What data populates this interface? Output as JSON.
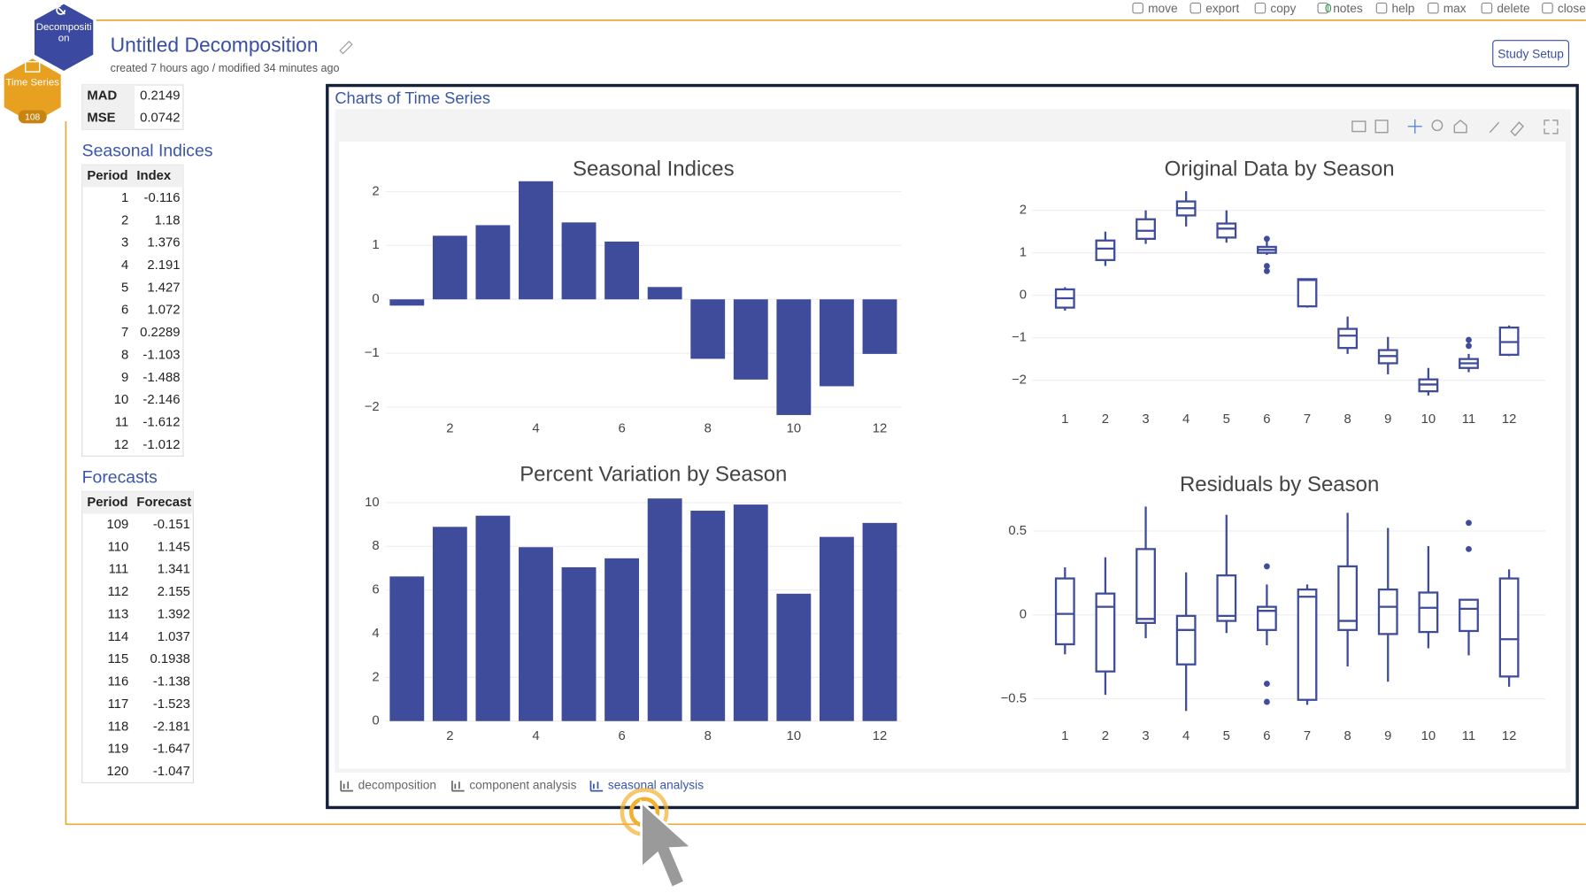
{
  "toolbar": [
    "move",
    "export",
    "copy",
    "notes",
    "help",
    "max",
    "delete",
    "close"
  ],
  "notes_count": 0,
  "module_label": [
    "Decompositi",
    "on"
  ],
  "study_label": "Time Series",
  "study_count": 108,
  "header": {
    "title": "Untitled Decomposition",
    "subtitle": "created 7 hours ago / modified 34 minutes ago",
    "button": "Study Setup"
  },
  "stats": {
    "rows": [
      [
        "MAD",
        0.2149
      ],
      [
        "MSE",
        0.0742
      ]
    ]
  },
  "seasonal_indices": {
    "title": "Seasonal Indices",
    "columns": [
      "Period",
      "Index"
    ],
    "rows": [
      [
        1,
        -0.116
      ],
      [
        2,
        1.18
      ],
      [
        3,
        1.376
      ],
      [
        4,
        2.191
      ],
      [
        5,
        1.427
      ],
      [
        6,
        1.072
      ],
      [
        7,
        0.2289
      ],
      [
        8,
        -1.103
      ],
      [
        9,
        -1.488
      ],
      [
        10,
        -2.146
      ],
      [
        11,
        -1.612
      ],
      [
        12,
        -1.012
      ]
    ]
  },
  "forecasts": {
    "title": "Forecasts",
    "columns": [
      "Period",
      "Forecast"
    ],
    "rows": [
      [
        109,
        -0.151
      ],
      [
        110,
        1.145
      ],
      [
        111,
        1.341
      ],
      [
        112,
        2.155
      ],
      [
        113,
        1.392
      ],
      [
        114,
        1.037
      ],
      [
        115,
        0.1938
      ],
      [
        116,
        -1.138
      ],
      [
        117,
        -1.523
      ],
      [
        118,
        -2.181
      ],
      [
        119,
        -1.647
      ],
      [
        120,
        -1.047
      ]
    ]
  },
  "panel": {
    "title": "Charts of Time Series",
    "tabs": [
      "decomposition",
      "component analysis",
      "seasonal analysis"
    ],
    "active_tab": 2
  },
  "chart_data": [
    {
      "type": "bar",
      "title": "Seasonal Indices",
      "x": [
        1,
        2,
        3,
        4,
        5,
        6,
        7,
        8,
        9,
        10,
        11,
        12
      ],
      "values": [
        -0.116,
        1.18,
        1.376,
        2.191,
        1.427,
        1.072,
        0.2289,
        -1.103,
        -1.488,
        -2.146,
        -1.612,
        -1.012
      ],
      "color": "#3f4b9b",
      "xlim": [
        0.5,
        12.5
      ],
      "xticks": [
        2,
        4,
        6,
        8,
        10,
        12
      ],
      "ylim": [
        -2.3,
        2.3
      ],
      "yticks": [
        {
          "value": -2,
          "label": "−2"
        },
        {
          "value": -1,
          "label": "−1"
        },
        0,
        1,
        2
      ],
      "grid": true
    },
    {
      "type": "bar",
      "title": "Percent Variation by Season",
      "x": [
        1,
        2,
        3,
        4,
        5,
        6,
        7,
        8,
        9,
        10,
        11,
        12
      ],
      "values": [
        6.62,
        8.89,
        9.4,
        7.96,
        7.04,
        7.45,
        10.19,
        9.63,
        9.91,
        5.83,
        8.43,
        9.07
      ],
      "color": "#3f4b9b",
      "xlim": [
        0.5,
        12.5
      ],
      "xticks": [
        2,
        4,
        6,
        8,
        10,
        12
      ],
      "ylim": [
        0,
        10.3
      ],
      "yticks": [
        0,
        2,
        4,
        6,
        8,
        10
      ],
      "grid": true
    },
    {
      "type": "box",
      "title": "Original Data by Season",
      "x": [
        1,
        2,
        3,
        4,
        5,
        6,
        7,
        8,
        9,
        10,
        11,
        12
      ],
      "low": [
        -0.36,
        0.69,
        1.21,
        1.62,
        1.24,
        0.95,
        -0.29,
        -1.38,
        -1.86,
        -2.36,
        -1.81,
        -1.43
      ],
      "q1": [
        -0.29,
        0.83,
        1.33,
        1.88,
        1.36,
        1.0,
        -0.26,
        -1.24,
        -1.6,
        -2.26,
        -1.71,
        -1.4
      ],
      "median": [
        -0.07,
        1.1,
        1.52,
        2.05,
        1.57,
        1.07,
        0.36,
        -0.95,
        -1.43,
        -2.1,
        -1.6,
        -1.1
      ],
      "q3": [
        0.14,
        1.29,
        1.79,
        2.21,
        1.69,
        1.14,
        0.38,
        -0.79,
        -1.29,
        -1.98,
        -1.5,
        -0.76
      ],
      "high": [
        0.19,
        1.5,
        2.0,
        2.45,
        2.0,
        1.29,
        0.4,
        -0.5,
        -0.98,
        -1.71,
        -1.38,
        -0.71
      ],
      "outliers": [
        [],
        [],
        [],
        [],
        [],
        [
          1.33,
          0.69,
          0.57
        ],
        [],
        [],
        [],
        [],
        [
          -1.05,
          -1.19
        ],
        []
      ],
      "color": "#3f4b9b",
      "xlim": [
        0.2,
        12.9
      ],
      "xticks": [
        1,
        2,
        3,
        4,
        5,
        6,
        7,
        8,
        9,
        10,
        11,
        12
      ],
      "ylim": [
        -2.55,
        2.55
      ],
      "yticks": [
        {
          "value": -2,
          "label": "−2"
        },
        {
          "value": -1,
          "label": "−1"
        },
        0,
        1,
        2
      ],
      "grid": true
    },
    {
      "type": "box",
      "title": "Residuals by Season",
      "x": [
        1,
        2,
        3,
        4,
        5,
        6,
        7,
        8,
        9,
        10,
        11,
        12
      ],
      "low": [
        -0.235,
        -0.476,
        -0.139,
        -0.572,
        -0.108,
        -0.181,
        -0.536,
        -0.307,
        -0.398,
        -0.199,
        -0.241,
        -0.428
      ],
      "q1": [
        -0.175,
        -0.337,
        -0.048,
        -0.295,
        -0.036,
        -0.09,
        -0.506,
        -0.09,
        -0.114,
        -0.102,
        -0.096,
        -0.367
      ],
      "median": [
        0.006,
        0.048,
        -0.024,
        -0.09,
        -0.006,
        0.024,
        0.108,
        -0.036,
        0.048,
        0.042,
        0.036,
        -0.145
      ],
      "q3": [
        0.217,
        0.127,
        0.392,
        -0.006,
        0.235,
        0.048,
        0.151,
        0.289,
        0.151,
        0.133,
        0.09,
        0.217
      ],
      "high": [
        0.283,
        0.343,
        0.645,
        0.253,
        0.596,
        0.181,
        0.181,
        0.608,
        0.518,
        0.41,
        0.09,
        0.271
      ],
      "outliers": [
        [],
        [],
        [],
        [],
        [],
        [
          0.289,
          -0.41,
          -0.518
        ],
        [],
        [],
        [],
        [],
        [
          0.548,
          0.392
        ],
        []
      ],
      "color": "#3f4b9b",
      "xlim": [
        0.2,
        12.9
      ],
      "xticks": [
        1,
        2,
        3,
        4,
        5,
        6,
        7,
        8,
        9,
        10,
        11,
        12
      ],
      "ylim": [
        -0.65,
        0.68
      ],
      "yticks": [
        {
          "value": -0.5,
          "label": "−0.5"
        },
        0,
        0.5
      ],
      "grid": true
    }
  ]
}
